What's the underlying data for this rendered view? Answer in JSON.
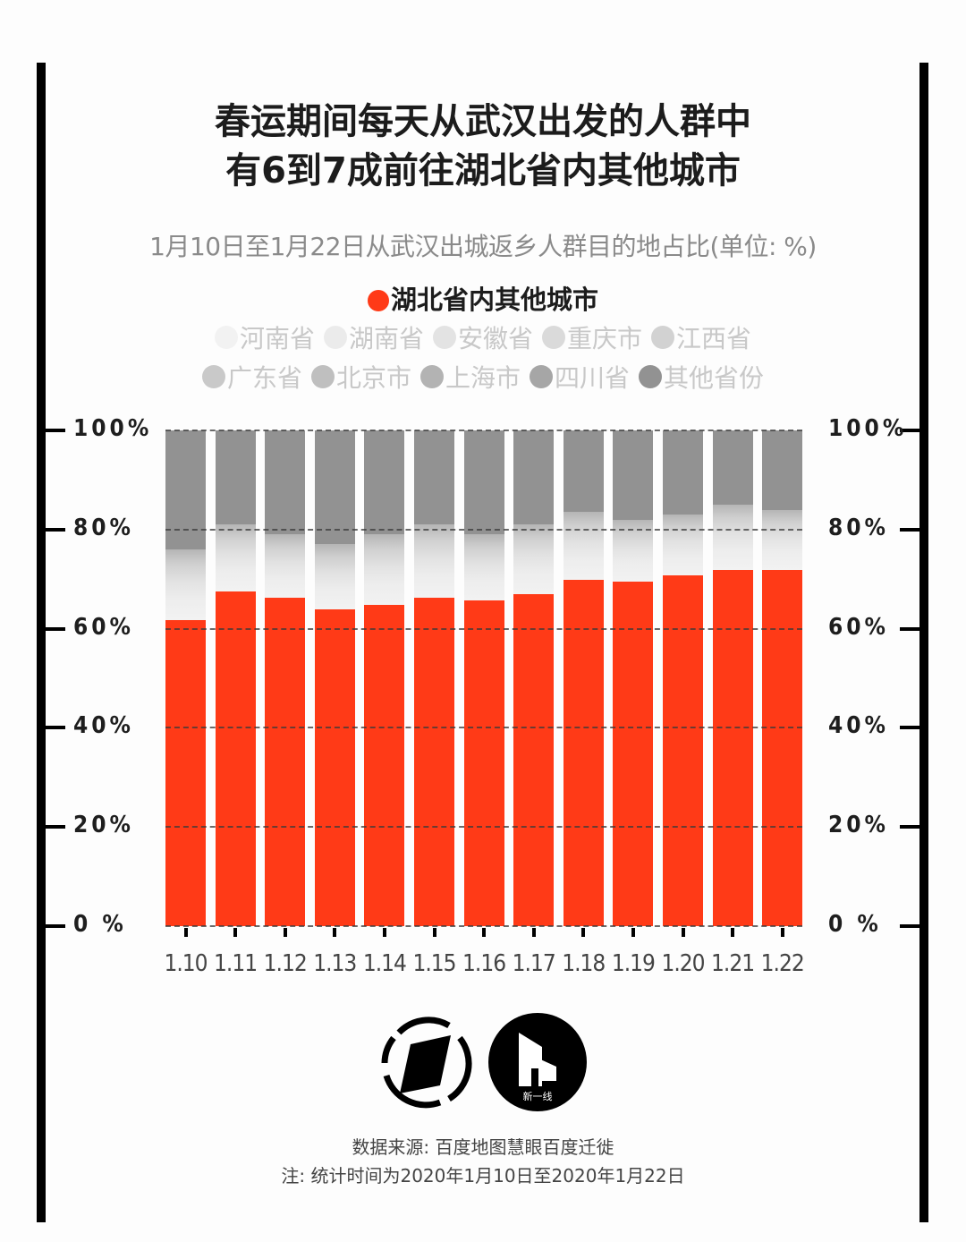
{
  "title": {
    "line1": "春运期间每天从武汉出发的人群中",
    "line2": "有6到7成前往湖北省内其他城市"
  },
  "subtitle": "1月10日至1月22日从武汉出城返乡人群目的地占比(单位: %)",
  "legend": {
    "main": {
      "label": "湖北省内其他城市",
      "color": "#ff3a17"
    },
    "row1": [
      {
        "label": "河南省",
        "color": "#f2f2f2"
      },
      {
        "label": "湖南省",
        "color": "#ebebeb"
      },
      {
        "label": "安徽省",
        "color": "#e3e3e3"
      },
      {
        "label": "重庆市",
        "color": "#dadada"
      },
      {
        "label": "江西省",
        "color": "#d2d2d2"
      }
    ],
    "row2": [
      {
        "label": "广东省",
        "color": "#c9c9c9"
      },
      {
        "label": "北京市",
        "color": "#bfbfbf"
      },
      {
        "label": "上海市",
        "color": "#b3b3b3"
      },
      {
        "label": "四川省",
        "color": "#a6a6a6"
      },
      {
        "label": "其他省份",
        "color": "#929292"
      }
    ]
  },
  "y_axis": {
    "left_labels": [
      "100%",
      "80%",
      "60%",
      "40%",
      "20%",
      "0 %"
    ],
    "right_labels": [
      "100%",
      "80%",
      "60%",
      "40%",
      "20%",
      "0 %"
    ]
  },
  "footer": {
    "source": "数据来源: 百度地图慧眼百度迁徙",
    "note": "注: 统计时间为2020年1月10日至2020年1月22日"
  },
  "logos": {
    "logo2_caption": "新一线"
  },
  "chart_data": {
    "type": "bar",
    "stacked": true,
    "title": "春运期间每天从武汉出发的人群中有6到7成前往湖北省内其他城市",
    "subtitle": "1月10日至1月22日从武汉出城返乡人群目的地占比(单位: %)",
    "xlabel": "",
    "ylabel": "%",
    "ylim": [
      0,
      100
    ],
    "yticks": [
      0,
      20,
      40,
      60,
      80,
      100
    ],
    "grid": "dashed horizontal at 20% intervals",
    "legend_position": "top",
    "categories": [
      "1.10",
      "1.11",
      "1.12",
      "1.13",
      "1.14",
      "1.15",
      "1.16",
      "1.17",
      "1.18",
      "1.19",
      "1.20",
      "1.21",
      "1.22"
    ],
    "series": [
      {
        "name": "湖北省内其他城市",
        "color": "#ff3a17",
        "values": [
          61.7,
          67.5,
          66.2,
          63.9,
          64.8,
          66.2,
          65.7,
          67.0,
          69.9,
          69.5,
          70.8,
          71.8,
          71.8
        ]
      },
      {
        "name": "河南省/湖南省/安徽省/重庆市/江西省/广东省/北京市/上海市/四川省 (combined, light gray gradient)",
        "color": "#dcdcdc",
        "values": [
          14.3,
          13.5,
          12.8,
          13.1,
          14.2,
          14.8,
          13.3,
          14.0,
          13.6,
          12.5,
          12.2,
          13.2,
          12.2
        ]
      },
      {
        "name": "其他省份",
        "color": "#929292",
        "values": [
          24.0,
          19.0,
          21.0,
          23.0,
          21.0,
          19.0,
          21.0,
          19.0,
          16.5,
          18.0,
          17.0,
          15.0,
          16.0
        ]
      }
    ]
  }
}
